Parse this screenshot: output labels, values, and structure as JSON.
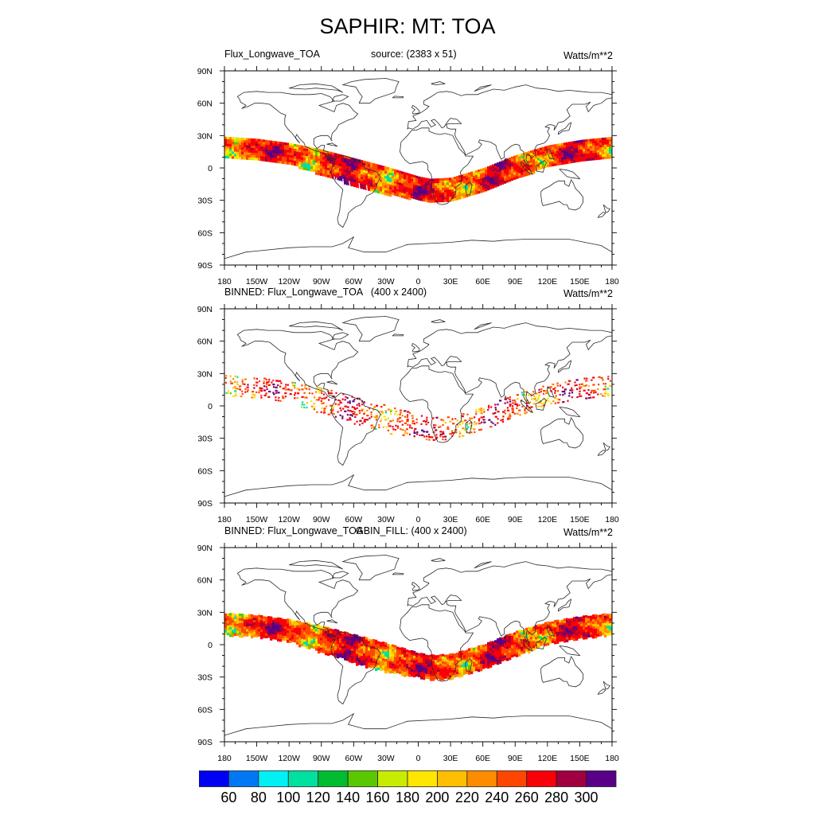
{
  "title": "SAPHIR: MT: TOA",
  "units": "Watts/m**2",
  "panels": [
    {
      "left_label": "Flux_Longwave_TOA",
      "center_label": "source: (2383 x 51)",
      "right_label": "Watts/m**2",
      "style": "swath"
    },
    {
      "left_label": "BINNED: Flux_Longwave_TOA   (400 x 2400)",
      "center_label": "",
      "right_label": "Watts/m**2",
      "style": "binned"
    },
    {
      "left_label": "BINNED: Flux_Longwave_TOA",
      "center_label": "GBIN_FILL: (400 x 2400)",
      "right_label": "Watts/m**2",
      "style": "filled"
    }
  ],
  "axes": {
    "x_ticks": [
      {
        "lon": -180,
        "label": "180"
      },
      {
        "lon": -150,
        "label": "150W"
      },
      {
        "lon": -120,
        "label": "120W"
      },
      {
        "lon": -90,
        "label": "90W"
      },
      {
        "lon": -60,
        "label": "60W"
      },
      {
        "lon": -30,
        "label": "30W"
      },
      {
        "lon": 0,
        "label": "0"
      },
      {
        "lon": 30,
        "label": "30E"
      },
      {
        "lon": 60,
        "label": "60E"
      },
      {
        "lon": 90,
        "label": "90E"
      },
      {
        "lon": 120,
        "label": "120E"
      },
      {
        "lon": 150,
        "label": "150E"
      },
      {
        "lon": 180,
        "label": "180"
      }
    ],
    "y_ticks": [
      {
        "lat": 90,
        "label": "90N"
      },
      {
        "lat": 60,
        "label": "60N"
      },
      {
        "lat": 30,
        "label": "30N"
      },
      {
        "lat": 0,
        "label": "0"
      },
      {
        "lat": -30,
        "label": "30S"
      },
      {
        "lat": -60,
        "label": "60S"
      },
      {
        "lat": -90,
        "label": "90S"
      }
    ]
  },
  "colorbar": {
    "colors": [
      "#0000f4",
      "#0078f4",
      "#00f0f4",
      "#00e0a0",
      "#00bc30",
      "#5ac800",
      "#c8ec00",
      "#ffe600",
      "#ffbe00",
      "#ff8c00",
      "#ff4600",
      "#f80008",
      "#a00040",
      "#580088"
    ],
    "labels": [
      "60",
      "80",
      "100",
      "120",
      "140",
      "160",
      "180",
      "200",
      "220",
      "240",
      "260",
      "280",
      "300"
    ]
  },
  "band": {
    "comment_units": "latitude degrees of swath edges by longitude",
    "lon": [
      -180,
      -150,
      -120,
      -90,
      -60,
      -30,
      0,
      10,
      30,
      60,
      90,
      120,
      150,
      180
    ],
    "north": [
      29,
      27,
      23,
      17,
      9,
      1,
      -8,
      -10,
      -9,
      0,
      12,
      21,
      26,
      29
    ],
    "south": [
      10,
      9,
      4,
      -6,
      -16,
      -24,
      -29,
      -31,
      -30,
      -22,
      -9,
      2,
      7,
      11
    ]
  }
}
